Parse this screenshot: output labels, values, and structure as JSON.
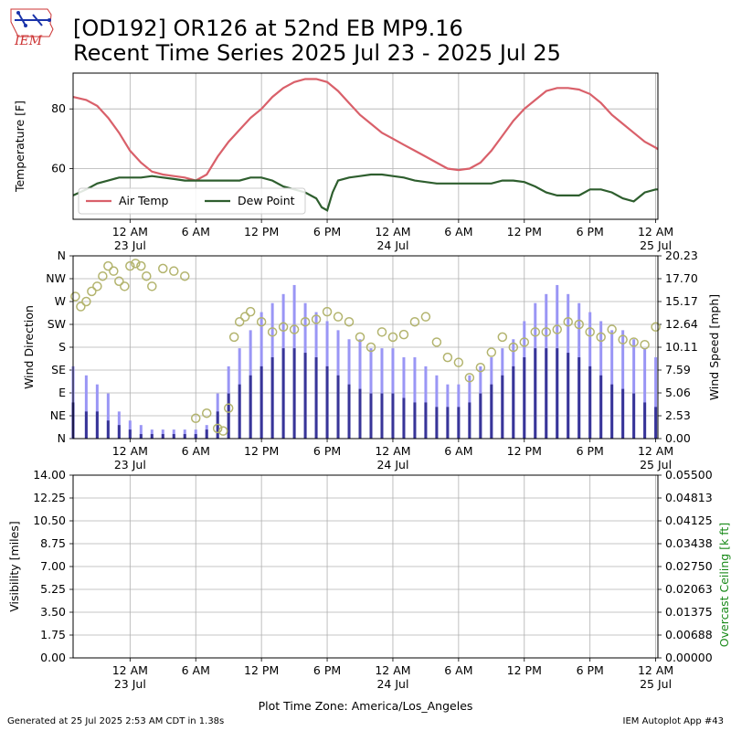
{
  "header": {
    "title_line1": "[OD192] OR126 at 52nd EB MP9.16",
    "title_line2": "Recent Time Series 2025 Jul 23 - 2025 Jul 25",
    "logo_text": "IEM"
  },
  "footer": {
    "generated": "Generated at 25 Jul 2025 2:53 AM CDT in 1.38s",
    "app": "IEM Autoplot App #43",
    "timezone_label": "Plot Time Zone: America/Los_Angeles"
  },
  "colors": {
    "air_temp": "#d9606a",
    "dew_point": "#2e5e2e",
    "gust": "#9a96f5",
    "speed": "#383598",
    "direction": "#b3b46e",
    "ceiling_axis": "#1a8a1a",
    "grid": "#b0b0b0"
  },
  "chart_data": [
    {
      "type": "line",
      "panel": "temperature",
      "ylabel": "Temperature [F]",
      "x_unit": "hours since 23 Jul 12 AM (America/Los_Angeles)",
      "x_tick_labels": [
        {
          "x": 0,
          "label": "12 AM",
          "sub": "23 Jul"
        },
        {
          "x": 6,
          "label": "6 AM",
          "sub": ""
        },
        {
          "x": 12,
          "label": "12 PM",
          "sub": ""
        },
        {
          "x": 18,
          "label": "6 PM",
          "sub": ""
        },
        {
          "x": 24,
          "label": "12 AM",
          "sub": "24 Jul"
        },
        {
          "x": 30,
          "label": "6 AM",
          "sub": ""
        },
        {
          "x": 36,
          "label": "12 PM",
          "sub": ""
        },
        {
          "x": 42,
          "label": "6 PM",
          "sub": ""
        },
        {
          "x": 48,
          "label": "12 AM",
          "sub": "25 Jul"
        }
      ],
      "xlim": [
        -5.2,
        48.2
      ],
      "ylim": [
        43,
        92
      ],
      "yticks": [
        60,
        80
      ],
      "grid": true,
      "legend": "lower-left",
      "series": [
        {
          "name": "Air Temp",
          "x": [
            -5.2,
            -4,
            -3,
            -2,
            -1,
            0,
            1,
            2,
            3,
            4,
            5,
            6,
            7,
            8,
            9,
            10,
            11,
            12,
            13,
            14,
            15,
            16,
            17,
            18,
            19,
            20,
            21,
            22,
            23,
            24,
            25,
            26,
            27,
            28,
            29,
            30,
            31,
            32,
            33,
            34,
            35,
            36,
            37,
            38,
            39,
            40,
            41,
            42,
            43,
            44,
            45,
            46,
            47,
            48,
            48.2
          ],
          "y": [
            84,
            83,
            81,
            77,
            72,
            66,
            62,
            59,
            58,
            57.5,
            57,
            56,
            58,
            64,
            69,
            73,
            77,
            80,
            84,
            87,
            89,
            90,
            90,
            89,
            86,
            82,
            78,
            75,
            72,
            70,
            68,
            66,
            64,
            62,
            60,
            59.5,
            60,
            62,
            66,
            71,
            76,
            80,
            83,
            86,
            87,
            87,
            86.5,
            85,
            82,
            78,
            75,
            72,
            69,
            67,
            66.5
          ]
        },
        {
          "name": "Dew Point",
          "x": [
            -5.2,
            -4,
            -3,
            -2,
            -1,
            0,
            1,
            2,
            3,
            4,
            5,
            6,
            7,
            8,
            9,
            10,
            11,
            12,
            13,
            14,
            15,
            16,
            17,
            17.5,
            18,
            18.5,
            19,
            20,
            21,
            22,
            23,
            24,
            25,
            26,
            27,
            28,
            29,
            30,
            31,
            32,
            33,
            34,
            35,
            36,
            37,
            38,
            39,
            40,
            41,
            42,
            43,
            44,
            45,
            46,
            47,
            48,
            48.2
          ],
          "y": [
            51,
            53,
            55,
            56,
            57,
            57,
            57,
            57.5,
            57,
            56.5,
            56,
            56,
            56,
            56,
            56,
            56,
            57,
            57,
            56,
            54,
            53,
            52,
            50,
            47,
            46,
            52,
            56,
            57,
            57.5,
            58,
            58,
            57.5,
            57,
            56,
            55.5,
            55,
            55,
            55,
            55,
            55,
            55,
            56,
            56,
            55.5,
            54,
            52,
            51,
            51,
            51,
            53,
            53,
            52,
            50,
            49,
            52,
            53,
            53
          ]
        }
      ]
    },
    {
      "type": "bar",
      "panel": "wind",
      "ylabel": "Wind Direction",
      "y2label": "Wind Speed [mph]",
      "x_unit": "hours since 23 Jul 12 AM (America/Los_Angeles)",
      "x_tick_labels": [
        {
          "x": 0,
          "label": "12 AM",
          "sub": "23 Jul"
        },
        {
          "x": 6,
          "label": "6 AM",
          "sub": ""
        },
        {
          "x": 12,
          "label": "12 PM",
          "sub": ""
        },
        {
          "x": 18,
          "label": "6 PM",
          "sub": ""
        },
        {
          "x": 24,
          "label": "12 AM",
          "sub": "24 Jul"
        },
        {
          "x": 30,
          "label": "6 AM",
          "sub": ""
        },
        {
          "x": 36,
          "label": "12 PM",
          "sub": ""
        },
        {
          "x": 42,
          "label": "6 PM",
          "sub": ""
        },
        {
          "x": 48,
          "label": "12 AM",
          "sub": "25 Jul"
        }
      ],
      "xlim": [
        -5.2,
        48.2
      ],
      "direction_ticks": [
        "N",
        "NE",
        "E",
        "SE",
        "S",
        "SW",
        "W",
        "NW",
        "N"
      ],
      "direction_ylim": [
        0,
        360
      ],
      "speed_ticks": [
        "0.00",
        "2.53",
        "5.06",
        "7.59",
        "10.11",
        "12.64",
        "15.17",
        "17.70",
        "20.23"
      ],
      "speed_ylim": [
        0,
        20.23
      ],
      "grid": true,
      "gust": {
        "x": [
          -5.2,
          -4,
          -3,
          -2,
          -1,
          0,
          1,
          2,
          3,
          4,
          5,
          6,
          7,
          8,
          9,
          10,
          11,
          12,
          13,
          14,
          15,
          16,
          17,
          18,
          19,
          20,
          21,
          22,
          23,
          24,
          25,
          26,
          27,
          28,
          29,
          30,
          31,
          32,
          33,
          34,
          35,
          36,
          37,
          38,
          39,
          40,
          41,
          42,
          43,
          44,
          45,
          46,
          47,
          48
        ],
        "y": [
          8,
          7,
          6,
          5,
          3,
          2,
          1.5,
          1,
          1,
          1,
          1,
          1,
          1.5,
          5,
          8,
          10,
          12,
          14,
          15,
          16,
          17,
          15,
          14,
          13,
          12,
          11,
          11,
          10,
          10,
          10,
          9,
          9,
          8,
          7,
          6,
          6,
          7,
          8,
          9,
          10,
          11,
          13,
          15,
          16,
          17,
          16,
          15,
          14,
          13,
          12,
          12,
          11,
          10,
          9
        ]
      },
      "speed": {
        "x": [
          -5.2,
          -4,
          -3,
          -2,
          -1,
          0,
          1,
          2,
          3,
          4,
          5,
          6,
          7,
          8,
          9,
          10,
          11,
          12,
          13,
          14,
          15,
          16,
          17,
          18,
          19,
          20,
          21,
          22,
          23,
          24,
          25,
          26,
          27,
          28,
          29,
          30,
          31,
          32,
          33,
          34,
          35,
          36,
          37,
          38,
          39,
          40,
          41,
          42,
          43,
          44,
          45,
          46,
          47,
          48
        ],
        "y": [
          4,
          3,
          3,
          2,
          1.5,
          1,
          0.5,
          0.5,
          0.5,
          0.5,
          0.5,
          0.5,
          1,
          3,
          5,
          6,
          7,
          8,
          9,
          10,
          10,
          9.5,
          9,
          8,
          7,
          6,
          5.5,
          5,
          5,
          5,
          4.5,
          4,
          4,
          3.5,
          3.5,
          3.5,
          4,
          5,
          6,
          7,
          8,
          9,
          10,
          10,
          10,
          9.5,
          9,
          8,
          7,
          6,
          5.5,
          5,
          4,
          3.5
        ]
      },
      "direction": {
        "x": [
          -5,
          -4.5,
          -4,
          -3.5,
          -3,
          -2.5,
          -2,
          -1.5,
          -1,
          -0.5,
          0,
          0.5,
          1,
          1.5,
          2,
          3,
          4,
          5,
          6,
          7,
          8,
          8.5,
          9,
          9.5,
          10,
          10.5,
          11,
          12,
          13,
          14,
          15,
          16,
          17,
          18,
          19,
          20,
          21,
          22,
          23,
          24,
          25,
          26,
          27,
          28,
          29,
          30,
          31,
          32,
          33,
          34,
          35,
          36,
          37,
          38,
          39,
          40,
          41,
          42,
          43,
          44,
          45,
          46,
          47,
          48
        ],
        "y": [
          280,
          260,
          270,
          290,
          300,
          320,
          340,
          330,
          310,
          300,
          340,
          345,
          340,
          320,
          300,
          335,
          330,
          320,
          40,
          50,
          20,
          15,
          60,
          200,
          230,
          240,
          250,
          230,
          210,
          220,
          215,
          230,
          235,
          250,
          240,
          230,
          200,
          180,
          210,
          200,
          205,
          230,
          240,
          190,
          160,
          150,
          120,
          140,
          170,
          200,
          180,
          190,
          210,
          210,
          215,
          230,
          225,
          210,
          200,
          215,
          195,
          190,
          185,
          220
        ]
      }
    },
    {
      "type": "line",
      "panel": "visibility",
      "ylabel": "Visibility [miles]",
      "y2label": "Overcast Ceiling [k ft]",
      "xlabel": "Plot Time Zone: America/Los_Angeles",
      "x_unit": "hours since 23 Jul 12 AM (America/Los_Angeles)",
      "x_tick_labels": [
        {
          "x": 0,
          "label": "12 AM",
          "sub": "23 Jul"
        },
        {
          "x": 6,
          "label": "6 AM",
          "sub": ""
        },
        {
          "x": 12,
          "label": "12 PM",
          "sub": ""
        },
        {
          "x": 18,
          "label": "6 PM",
          "sub": ""
        },
        {
          "x": 24,
          "label": "12 AM",
          "sub": "24 Jul"
        },
        {
          "x": 30,
          "label": "6 AM",
          "sub": ""
        },
        {
          "x": 36,
          "label": "12 PM",
          "sub": ""
        },
        {
          "x": 42,
          "label": "6 PM",
          "sub": ""
        },
        {
          "x": 48,
          "label": "12 AM",
          "sub": "25 Jul"
        }
      ],
      "xlim": [
        -5.2,
        48.2
      ],
      "yticks": [
        "0.00",
        "1.75",
        "3.50",
        "5.25",
        "7.00",
        "8.75",
        "10.50",
        "12.25",
        "14.00"
      ],
      "ylim": [
        0,
        14
      ],
      "y2ticks": [
        "0.00000",
        "0.00688",
        "0.01375",
        "0.02063",
        "0.02750",
        "0.03438",
        "0.04125",
        "0.04813",
        "0.05500"
      ],
      "y2lim": [
        0,
        0.055
      ],
      "grid": true,
      "series": []
    }
  ]
}
